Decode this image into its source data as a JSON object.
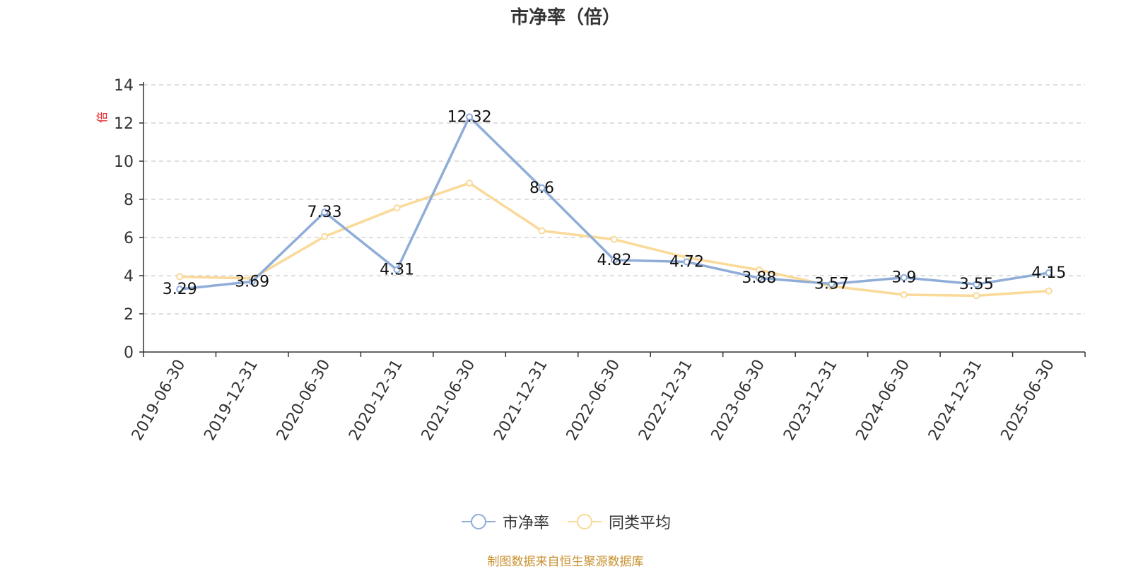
{
  "title": "市净率（倍）",
  "source_note": "制图数据来自恒生聚源数据库",
  "chart_data": {
    "type": "line",
    "title": "市净率（倍）",
    "ylabel": "倍",
    "xlabel": "",
    "ylim": [
      0,
      14
    ],
    "yticks": [
      0,
      2,
      4,
      6,
      8,
      10,
      12,
      14
    ],
    "grid": true,
    "legend_position": "bottom",
    "categories": [
      "2019-06-30",
      "2019-12-31",
      "2020-06-30",
      "2020-12-31",
      "2021-06-30",
      "2021-12-31",
      "2022-06-30",
      "2022-12-31",
      "2023-06-30",
      "2023-12-31",
      "2024-06-30",
      "2024-12-31",
      "2025-06-30"
    ],
    "series": [
      {
        "name": "市净率",
        "color": "#8fadd8",
        "values": [
          3.29,
          3.69,
          7.33,
          4.31,
          12.32,
          8.6,
          4.82,
          4.72,
          3.88,
          3.57,
          3.9,
          3.55,
          4.15
        ],
        "labels": [
          "3.29",
          "3.69",
          "7.33",
          "4.31",
          "12.32",
          "8.6",
          "4.82",
          "4.72",
          "3.88",
          "3.57",
          "3.9",
          "3.55",
          "4.15"
        ]
      },
      {
        "name": "同类平均",
        "color": "#fad999",
        "values": [
          3.95,
          3.85,
          6.05,
          7.55,
          8.85,
          6.35,
          5.9,
          4.95,
          4.3,
          3.45,
          3.0,
          2.95,
          3.2
        ]
      }
    ]
  }
}
